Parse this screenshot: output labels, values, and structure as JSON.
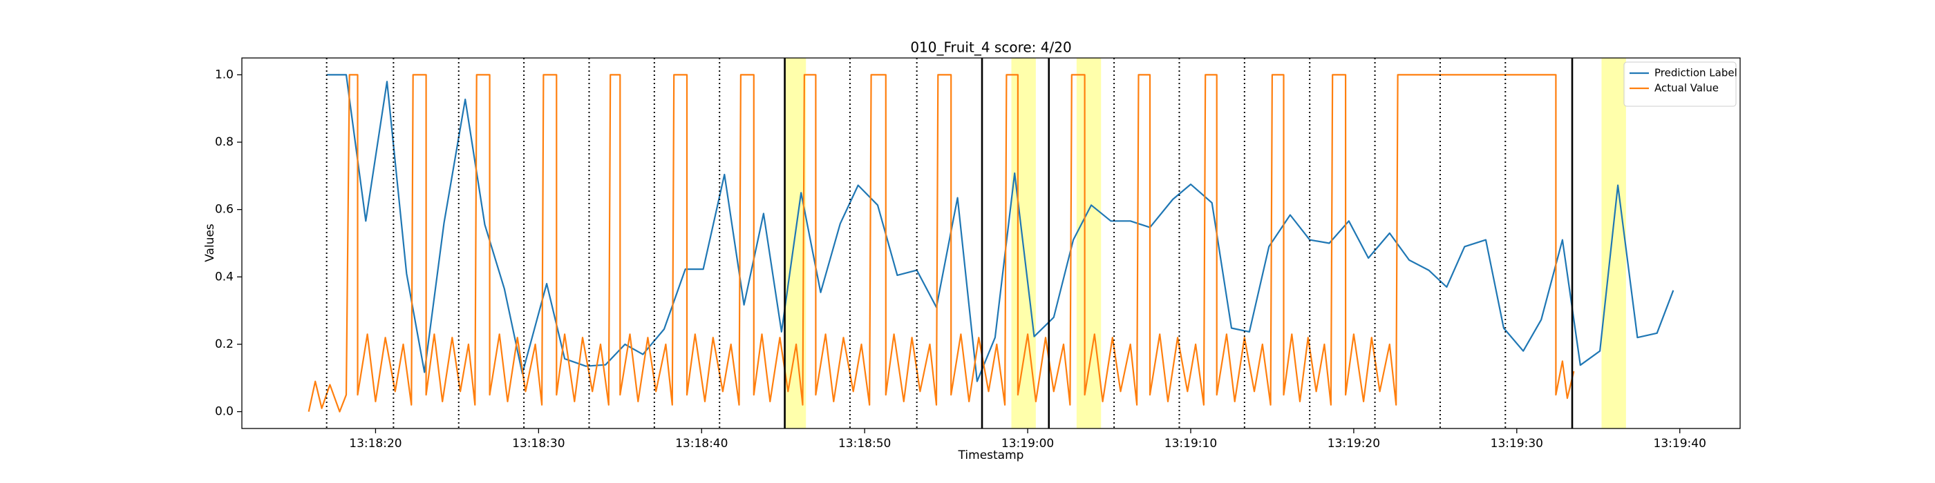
{
  "chart_data": {
    "type": "line",
    "title": "010_Fruit_4 score: 4/20",
    "xlabel": "Timestamp",
    "ylabel": "Values",
    "legend": "upper right",
    "xlim": [
      "13:18:11.8",
      "13:19:43.7"
    ],
    "ylim": [
      -0.05,
      1.05
    ],
    "xticks": [
      "13:18:20",
      "13:18:30",
      "13:18:40",
      "13:18:50",
      "13:19:00",
      "13:19:10",
      "13:19:20",
      "13:19:30",
      "13:19:40"
    ],
    "yticks": [
      {
        "value": 0,
        "label": "0.0"
      },
      0.2,
      0.4,
      0.6,
      0.8,
      {
        "value": 1,
        "label": "1.0"
      }
    ],
    "span_color": "#ffff66",
    "highlight_spans": [
      [
        "13:18:45.1",
        "13:18:46.4"
      ],
      [
        "13:18:59.0",
        "13:19:00.5"
      ],
      [
        "13:19:03.0",
        "13:19:04.5"
      ],
      [
        "13:19:35.2",
        "13:19:36.7"
      ]
    ],
    "vlines_dotted": [
      "13:18:17.0",
      "13:18:21.1",
      "13:18:25.1",
      "13:18:29.1",
      "13:18:33.1",
      "13:18:37.1",
      "13:18:41.1",
      "13:18:49.1",
      "13:18:53.2",
      "13:19:05.3",
      "13:19:09.3",
      "13:19:13.3",
      "13:19:17.3",
      "13:19:21.3",
      "13:19:25.3",
      "13:19:29.3"
    ],
    "vlines_solid": [
      "13:18:45.1",
      "13:18:57.2",
      "13:19:01.3",
      "13:19:33.4"
    ],
    "series": [
      {
        "name": "Prediction Label",
        "color": "#1f77b4",
        "x": [
          "13:18:17.0",
          "13:18:18.2",
          "13:18:19.4",
          "13:18:20.7",
          "13:18:21.9",
          "13:18:23.0",
          "13:18:24.2",
          "13:18:25.5",
          "13:18:26.7",
          "13:18:27.9",
          "13:18:29.0",
          "13:18:30.5",
          "13:18:31.6",
          "13:18:32.9",
          "13:18:34.1",
          "13:18:35.3",
          "13:18:36.4",
          "13:18:37.7",
          "13:18:39.0",
          "13:18:40.1",
          "13:18:41.4",
          "13:18:42.6",
          "13:18:43.8",
          "13:18:44.9",
          "13:18:46.1",
          "13:18:47.3",
          "13:18:48.5",
          "13:18:49.6",
          "13:18:50.8",
          "13:18:52.0",
          "13:18:53.2",
          "13:18:54.4",
          "13:18:55.7",
          "13:18:56.9",
          "13:18:58.0",
          "13:18:59.2",
          "13:19:00.4",
          "13:19:01.6",
          "13:19:02.8",
          "13:19:03.9",
          "13:19:05.1",
          "13:19:06.3",
          "13:19:07.5",
          "13:19:08.9",
          "13:19:10.0",
          "13:19:11.3",
          "13:19:12.5",
          "13:19:13.6",
          "13:19:14.8",
          "13:19:16.1",
          "13:19:17.3",
          "13:19:18.5",
          "13:19:19.7",
          "13:19:20.9",
          "13:19:22.2",
          "13:19:23.4",
          "13:19:24.6",
          "13:19:25.7",
          "13:19:26.8",
          "13:19:28.1",
          "13:19:29.2",
          "13:19:30.4",
          "13:19:31.5",
          "13:19:32.8",
          "13:19:33.9",
          "13:19:35.1",
          "13:19:36.2",
          "13:19:37.4",
          "13:19:38.6",
          "13:19:39.6"
        ],
        "values": [
          1.0,
          1.0,
          0.566,
          0.98,
          0.41,
          0.117,
          0.56,
          0.927,
          0.555,
          0.365,
          0.113,
          0.38,
          0.157,
          0.135,
          0.139,
          0.2,
          0.17,
          0.245,
          0.423,
          0.423,
          0.704,
          0.317,
          0.588,
          0.237,
          0.65,
          0.354,
          0.558,
          0.672,
          0.613,
          0.405,
          0.42,
          0.31,
          0.635,
          0.09,
          0.22,
          0.708,
          0.223,
          0.28,
          0.51,
          0.613,
          0.566,
          0.566,
          0.547,
          0.63,
          0.675,
          0.62,
          0.248,
          0.237,
          0.49,
          0.584,
          0.51,
          0.5,
          0.566,
          0.456,
          0.53,
          0.45,
          0.42,
          0.37,
          0.49,
          0.51,
          0.248,
          0.18,
          0.273,
          0.51,
          0.138,
          0.18,
          0.672,
          0.22,
          0.233,
          0.36
        ]
      },
      {
        "name": "Actual Value",
        "color": "#ff7f0e",
        "x": [
          "13:18:15.9",
          "13:18:16.3",
          "13:18:16.7",
          "13:18:17.2",
          "13:18:17.8",
          "13:18:18.2",
          "13:18:18.4",
          "13:18:18.9",
          "13:18:18.9",
          "13:18:19.5",
          "13:18:20.0",
          "13:18:20.6",
          "13:18:21.2",
          "13:18:21.7",
          "13:18:22.2",
          "13:18:22.3",
          "13:18:23.1",
          "13:18:23.1",
          "13:18:23.6",
          "13:18:24.1",
          "13:18:24.7",
          "13:18:25.2",
          "13:18:25.7",
          "13:18:26.1",
          "13:18:26.2",
          "13:18:27.0",
          "13:18:27.0",
          "13:18:27.6",
          "13:18:28.1",
          "13:18:28.7",
          "13:18:29.2",
          "13:18:29.8",
          "13:18:30.2",
          "13:18:30.3",
          "13:18:31.1",
          "13:18:31.1",
          "13:18:31.6",
          "13:18:32.2",
          "13:18:32.7",
          "13:18:33.3",
          "13:18:33.8",
          "13:18:34.3",
          "13:18:34.4",
          "13:18:35.0",
          "13:18:35.0",
          "13:18:35.6",
          "13:18:36.1",
          "13:18:36.7",
          "13:18:37.2",
          "13:18:37.8",
          "13:18:38.2",
          "13:18:38.3",
          "13:18:39.1",
          "13:18:39.1",
          "13:18:39.6",
          "13:18:40.2",
          "13:18:40.7",
          "13:18:41.3",
          "13:18:41.8",
          "13:18:42.3",
          "13:18:42.4",
          "13:18:43.2",
          "13:18:43.2",
          "13:18:43.7",
          "13:18:44.2",
          "13:18:44.8",
          "13:18:45.3",
          "13:18:45.8",
          "13:18:46.2",
          "13:18:46.3",
          "13:18:47.0",
          "13:18:47.0",
          "13:18:47.6",
          "13:18:48.1",
          "13:18:48.7",
          "13:18:49.3",
          "13:18:49.8",
          "13:18:50.3",
          "13:18:50.4",
          "13:18:51.3",
          "13:18:51.3",
          "13:18:51.8",
          "13:18:52.4",
          "13:18:52.9",
          "13:18:53.4",
          "13:18:54.0",
          "13:18:54.4",
          "13:18:54.5",
          "13:18:55.3",
          "13:18:55.3",
          "13:18:55.9",
          "13:18:56.4",
          "13:18:57.0",
          "13:18:57.6",
          "13:18:58.1",
          "13:18:58.6",
          "13:18:58.7",
          "13:18:59.4",
          "13:18:59.4",
          "13:19:00.0",
          "13:19:00.5",
          "13:19:01.1",
          "13:19:01.6",
          "13:19:02.2",
          "13:19:02.6",
          "13:19:02.7",
          "13:19:03.5",
          "13:19:03.5",
          "13:19:04.1",
          "13:19:04.6",
          "13:19:05.2",
          "13:19:05.7",
          "13:19:06.3",
          "13:19:06.7",
          "13:19:06.8",
          "13:19:07.5",
          "13:19:07.5",
          "13:19:08.1",
          "13:19:08.6",
          "13:19:09.2",
          "13:19:09.8",
          "13:19:10.3",
          "13:19:10.8",
          "13:19:10.9",
          "13:19:11.6",
          "13:19:11.6",
          "13:19:12.2",
          "13:19:12.7",
          "13:19:13.3",
          "13:19:13.9",
          "13:19:14.4",
          "13:19:14.9",
          "13:19:15.0",
          "13:19:15.7",
          "13:19:15.7",
          "13:19:16.2",
          "13:19:16.7",
          "13:19:17.2",
          "13:19:17.7",
          "13:19:18.2",
          "13:19:18.6",
          "13:19:18.7",
          "13:19:19.5",
          "13:19:19.5",
          "13:19:20.0",
          "13:19:20.6",
          "13:19:21.1",
          "13:19:21.6",
          "13:19:22.2",
          "13:19:22.6",
          "13:19:22.7",
          "13:19:32.4",
          "13:19:32.4",
          "13:19:32.8",
          "13:19:33.1",
          "13:19:33.5"
        ],
        "values": [
          0.0,
          0.09,
          0.01,
          0.08,
          0.0,
          0.05,
          1,
          1,
          0.05,
          0.23,
          0.03,
          0.22,
          0.06,
          0.2,
          0.02,
          1,
          1,
          0.05,
          0.23,
          0.03,
          0.22,
          0.06,
          0.2,
          0.02,
          1,
          1,
          0.05,
          0.23,
          0.03,
          0.22,
          0.06,
          0.2,
          0.02,
          1,
          1,
          0.05,
          0.23,
          0.03,
          0.22,
          0.06,
          0.2,
          0.02,
          1,
          1,
          0.05,
          0.23,
          0.03,
          0.22,
          0.06,
          0.2,
          0.02,
          1,
          1,
          0.05,
          0.23,
          0.03,
          0.22,
          0.06,
          0.2,
          0.02,
          1,
          1,
          0.05,
          0.23,
          0.03,
          0.22,
          0.06,
          0.2,
          0.02,
          1,
          1,
          0.05,
          0.23,
          0.03,
          0.22,
          0.06,
          0.2,
          0.02,
          1,
          1,
          0.05,
          0.23,
          0.03,
          0.22,
          0.06,
          0.2,
          0.02,
          1,
          1,
          0.05,
          0.23,
          0.03,
          0.22,
          0.06,
          0.2,
          0.02,
          1,
          1,
          0.05,
          0.23,
          0.03,
          0.22,
          0.06,
          0.2,
          0.02,
          1,
          1,
          0.05,
          0.23,
          0.03,
          0.22,
          0.06,
          0.2,
          0.02,
          1,
          1,
          0.05,
          0.23,
          0.03,
          0.22,
          0.06,
          0.2,
          0.02,
          1,
          1,
          0.05,
          0.23,
          0.03,
          0.22,
          0.06,
          0.2,
          0.02,
          1,
          1,
          0.05,
          0.23,
          0.03,
          0.22,
          0.06,
          0.2,
          0.02,
          1,
          1,
          0.05,
          0.23,
          0.03,
          0.22,
          0.06,
          0.2,
          0.02,
          1,
          1,
          0.05,
          0.15,
          0.04,
          0.12
        ]
      }
    ]
  }
}
